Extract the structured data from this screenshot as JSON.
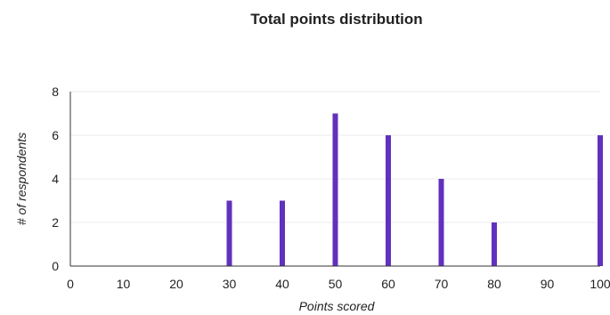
{
  "chart_data": {
    "type": "bar",
    "title": "Total points distribution",
    "xlabel": "Points scored",
    "ylabel": "# of respondents",
    "x_ticks": [
      0,
      10,
      20,
      30,
      40,
      50,
      60,
      70,
      80,
      90,
      100
    ],
    "y_ticks": [
      0,
      2,
      4,
      6,
      8
    ],
    "xlim": [
      0,
      100
    ],
    "ylim": [
      0,
      8
    ],
    "x": [
      30,
      40,
      50,
      60,
      70,
      80,
      100
    ],
    "values": [
      3,
      3,
      7,
      6,
      4,
      2,
      6
    ],
    "bar_color": "#6131be",
    "grid": true,
    "legend": "none"
  }
}
